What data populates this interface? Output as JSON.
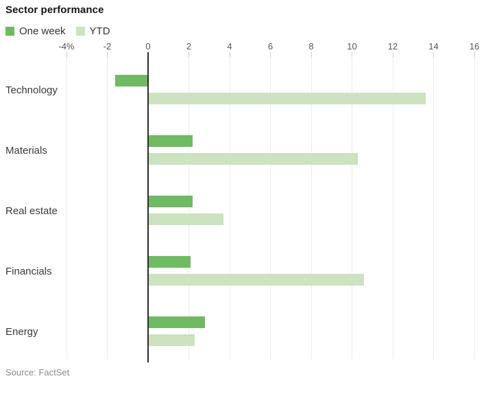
{
  "title": "Sector performance",
  "source": "Source: FactSet",
  "colors": {
    "one_week_green": "#6fba62",
    "ytd_green": "#cce2c0",
    "zero_line": "#2b2b2b",
    "gridline": "#ececea",
    "axis_text": "#555555",
    "label_text": "#3a3a3a",
    "source_text": "#8b8b8b"
  },
  "legend": {
    "items": [
      {
        "label": "One week",
        "swatch": "one-week-swatch"
      },
      {
        "label": "YTD",
        "swatch": "ytd-swatch"
      }
    ]
  },
  "chart_data": {
    "type": "bar",
    "orientation": "horizontal",
    "title": "Sector performance",
    "xlabel": "",
    "ylabel": "",
    "categories": [
      "Technology",
      "Materials",
      "Real estate",
      "Financials",
      "Energy"
    ],
    "series": [
      {
        "name": "One week",
        "color": "#6fba62",
        "values": [
          -1.6,
          2.2,
          2.2,
          2.1,
          2.8
        ]
      },
      {
        "name": "YTD",
        "color": "#cce2c0",
        "values": [
          13.6,
          10.3,
          3.7,
          10.6,
          2.3
        ]
      }
    ],
    "unit": "%",
    "xlim": [
      -4,
      16
    ],
    "x_ticks": [
      -4,
      -2,
      0,
      2,
      4,
      6,
      8,
      10,
      12,
      14,
      16
    ],
    "x_tick_labels": [
      "-4%",
      "-2",
      "0",
      "2",
      "4",
      "6",
      "8",
      "10",
      "12",
      "14",
      "16"
    ],
    "grid": true,
    "legend_position": "top-left",
    "source": "Source: FactSet"
  }
}
